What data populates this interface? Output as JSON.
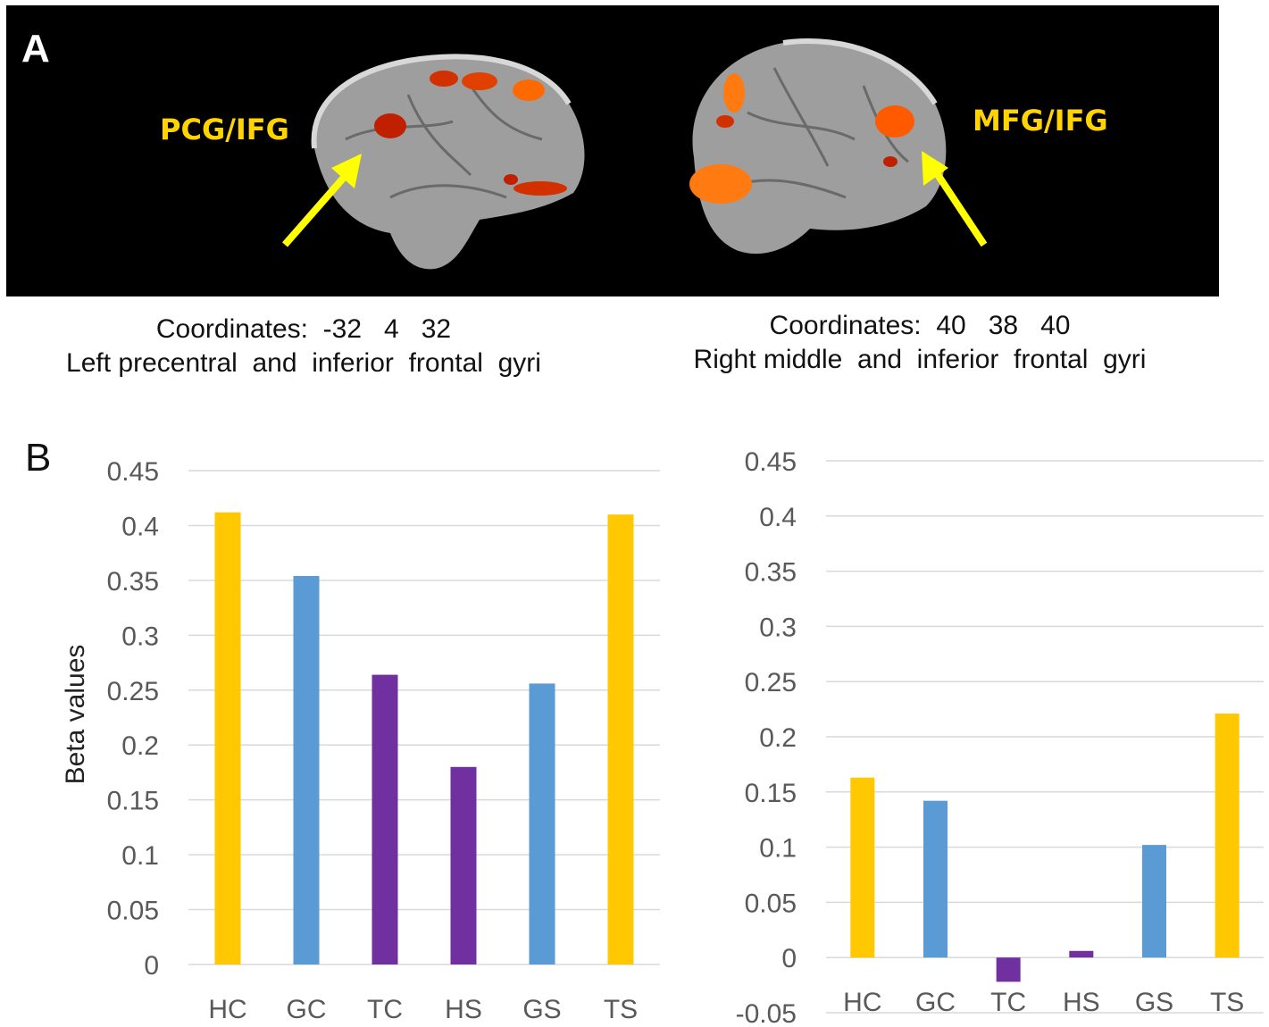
{
  "panel_a": {
    "letter": "A",
    "left_label": "PCG/IFG",
    "right_label": "MFG/IFG",
    "left_caption_line1": "Coordinates:  -32   4   32",
    "left_caption_line2": "Left precentral  and  inferior  frontal  gyri",
    "right_caption_line1": "Coordinates:  40   38   40",
    "right_caption_line2": "Right middle  and  inferior  frontal  gyri",
    "label_color": "#ffd400",
    "arrow_color": "#ffff00",
    "activation_color": "#ff5a00",
    "brain_color": "#a9a9a9"
  },
  "panel_b": {
    "letter": "B"
  },
  "chart_data": [
    {
      "type": "bar",
      "categories": [
        "HC",
        "GC",
        "TC",
        "HS",
        "GS",
        "TS"
      ],
      "values": [
        0.412,
        0.354,
        0.264,
        0.18,
        0.256,
        0.41
      ],
      "colors": [
        "#ffc800",
        "#5b9bd5",
        "#7030a0",
        "#7030a0",
        "#5b9bd5",
        "#ffc800"
      ],
      "ylabel": "Beta values",
      "ylim": [
        0,
        0.45
      ],
      "yticks": [
        "0",
        "0.05",
        "0.1",
        "0.15",
        "0.2",
        "0.25",
        "0.3",
        "0.35",
        "0.4",
        "0.45"
      ],
      "grid": true
    },
    {
      "type": "bar",
      "categories": [
        "HC",
        "GC",
        "TC",
        "HS",
        "GS",
        "TS"
      ],
      "values": [
        0.163,
        0.142,
        -0.022,
        0.006,
        0.102,
        0.221
      ],
      "colors": [
        "#ffc800",
        "#5b9bd5",
        "#7030a0",
        "#7030a0",
        "#5b9bd5",
        "#ffc800"
      ],
      "ylabel": "",
      "ylim": [
        -0.05,
        0.45
      ],
      "yticks": [
        "-0.05",
        "0",
        "0.05",
        "0.1",
        "0.15",
        "0.2",
        "0.25",
        "0.3",
        "0.35",
        "0.4",
        "0.45"
      ],
      "grid": true
    }
  ]
}
